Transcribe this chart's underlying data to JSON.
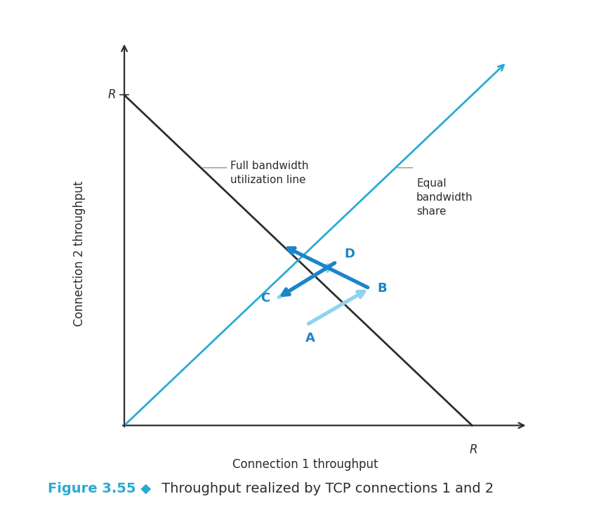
{
  "R": 1.0,
  "bg_color": "#ffffff",
  "axis_color": "#2d2d2d",
  "full_bw_line_color": "#2d2d2d",
  "equal_bw_line_color": "#29aad4",
  "dark_arrow_color": "#1a85c8",
  "light_arrow_color": "#8ed4ef",
  "xlabel": "Connection 1 throughput",
  "ylabel": "Connection 2 throughput",
  "R_label": "R",
  "full_bw_label": "Full bandwidth\nutilization line",
  "equal_bw_label": "Equal\nbandwidth\nshare",
  "caption_cyan": "Figure 3.55 ◆",
  "caption_dark": " Throughput realized by TCP connections 1 and 2",
  "caption_color_cyan": "#29aad4",
  "caption_color_dark": "#2d2d2d",
  "label_fontsize": 12,
  "point_fontsize": 13,
  "caption_fontsize": 14,
  "annot_fontsize": 11,
  "p_A": [
    0.525,
    0.305
  ],
  "p_B": [
    0.705,
    0.415
  ],
  "p_C": [
    0.44,
    0.385
  ],
  "p_D": [
    0.61,
    0.495
  ],
  "p_E": [
    0.455,
    0.545
  ]
}
